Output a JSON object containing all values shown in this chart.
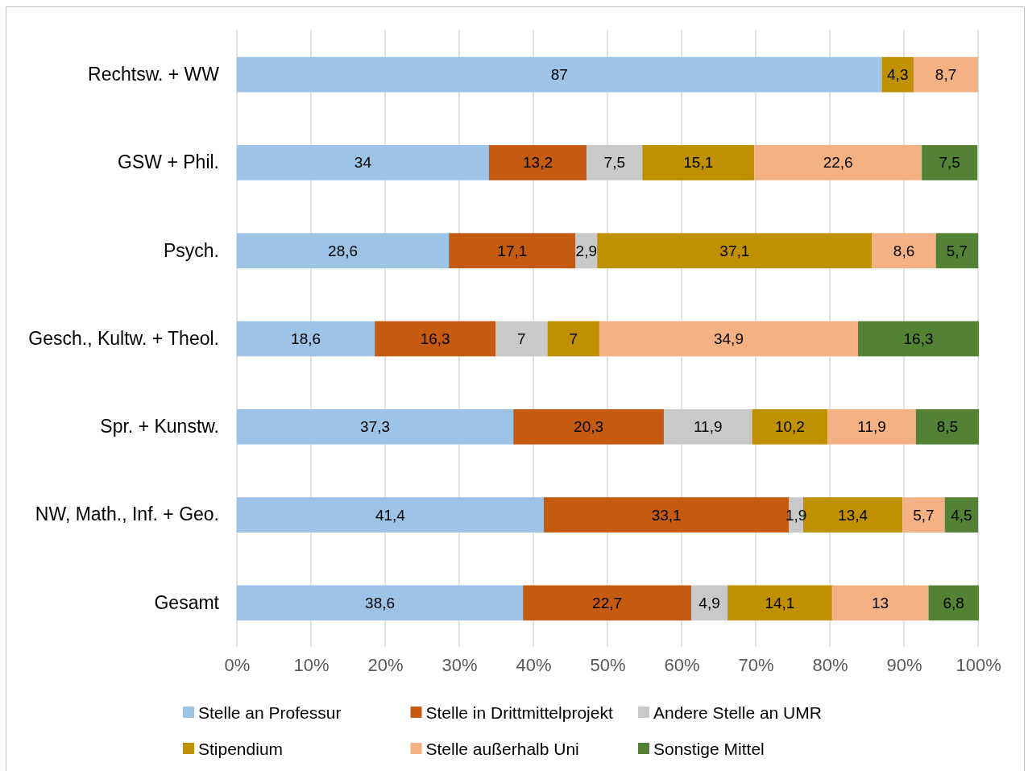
{
  "chart_data": {
    "type": "bar",
    "orientation": "horizontal",
    "stacked": true,
    "categories": [
      "Rechtsw. + WW",
      "GSW + Phil.",
      "Psych.",
      "Gesch., Kultw. + Theol.",
      "Spr. + Kunstw.",
      "NW, Math., Inf. + Geo.",
      "Gesamt"
    ],
    "series": [
      {
        "name": "Stelle an Professur",
        "color": "#9dc3e6",
        "values": [
          87,
          34,
          28.6,
          18.6,
          37.3,
          41.4,
          38.6
        ],
        "value_labels": [
          "87",
          "34",
          "28,6",
          "18,6",
          "37,3",
          "41,4",
          "38,6"
        ]
      },
      {
        "name": "Stelle in Drittmittelprojekt",
        "color": "#c55a11",
        "values": [
          null,
          13.2,
          17.1,
          16.3,
          20.3,
          33.1,
          22.7
        ],
        "value_labels": [
          null,
          "13,2",
          "17,1",
          "16,3",
          "20,3",
          "33,1",
          "22,7"
        ]
      },
      {
        "name": "Andere Stelle an UMR",
        "color": "#c9c9c9",
        "values": [
          null,
          7.5,
          2.9,
          7,
          11.9,
          1.9,
          4.9
        ],
        "value_labels": [
          null,
          "7,5",
          "2,9",
          "7",
          "11,9",
          "1,9",
          "4,9"
        ]
      },
      {
        "name": "Stipendium",
        "color": "#bf9000",
        "values": [
          4.3,
          15.1,
          37.1,
          7,
          10.2,
          13.4,
          14.1
        ],
        "value_labels": [
          "4,3",
          "15,1",
          "37,1",
          "7",
          "10,2",
          "13,4",
          "14,1"
        ]
      },
      {
        "name": "Stelle außerhalb Uni",
        "color": "#f4b183",
        "values": [
          8.7,
          22.6,
          8.6,
          34.9,
          11.9,
          5.7,
          13
        ],
        "value_labels": [
          "8,7",
          "22,6",
          "8,6",
          "34,9",
          "11,9",
          "5,7",
          "13"
        ]
      },
      {
        "name": "Sonstige Mittel",
        "color": "#548235",
        "values": [
          null,
          7.5,
          5.7,
          16.3,
          8.5,
          4.5,
          6.8
        ],
        "value_labels": [
          null,
          "7,5",
          "5,7",
          "16,3",
          "8,5",
          "4,5",
          "6,8"
        ]
      }
    ],
    "xlim": [
      0,
      100.1
    ],
    "xticks": [
      {
        "value": 0,
        "label": "0%"
      },
      {
        "value": 10,
        "label": "10%"
      },
      {
        "value": 20,
        "label": "20%"
      },
      {
        "value": 30,
        "label": "30%"
      },
      {
        "value": 40,
        "label": "40%"
      },
      {
        "value": 50,
        "label": "50%"
      },
      {
        "value": 60,
        "label": "60%"
      },
      {
        "value": 70,
        "label": "70%"
      },
      {
        "value": 80,
        "label": "80%"
      },
      {
        "value": 90,
        "label": "90%"
      },
      {
        "value": 100,
        "label": "100%"
      }
    ],
    "grid": "x",
    "legend": "bottom"
  }
}
